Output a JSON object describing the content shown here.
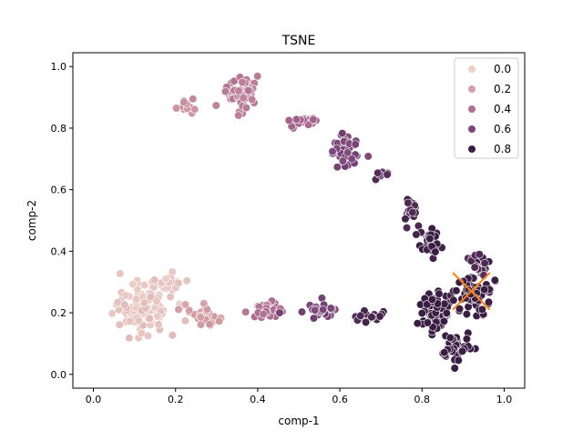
{
  "chart_data": {
    "type": "scatter",
    "title": "TSNE",
    "xlabel": "comp-1",
    "ylabel": "comp-2",
    "xlim": [
      -0.05,
      1.05
    ],
    "ylim": [
      -0.045,
      1.045
    ],
    "xticks": [
      0.0,
      0.2,
      0.4,
      0.6,
      0.8,
      1.0
    ],
    "yticks": [
      0.0,
      0.2,
      0.4,
      0.6,
      0.8,
      1.0
    ],
    "xtick_labels": [
      "0.0",
      "0.2",
      "0.4",
      "0.6",
      "0.8",
      "1.0"
    ],
    "ytick_labels": [
      "0.0",
      "0.2",
      "0.4",
      "0.6",
      "0.8",
      "1.0"
    ],
    "grid": false,
    "legend_position": "top-right",
    "legend": [
      {
        "label": "0.0",
        "value": 0.0
      },
      {
        "label": "0.2",
        "value": 0.2
      },
      {
        "label": "0.4",
        "value": 0.4
      },
      {
        "label": "0.6",
        "value": 0.6
      },
      {
        "label": "0.8",
        "value": 0.8
      }
    ],
    "hue_colors": {
      "0.0": "#ecd0c8",
      "0.2": "#d49fa4",
      "0.4": "#b06f92",
      "0.6": "#7b4679",
      "0.8": "#3a1d42"
    },
    "marker_edge_color": "#ffffff",
    "clusters": [
      {
        "hue": 0.05,
        "cx": 0.12,
        "cy": 0.22,
        "sx": 0.06,
        "sy": 0.07,
        "n": 120
      },
      {
        "hue": 0.05,
        "cx": 0.18,
        "cy": 0.3,
        "sx": 0.03,
        "sy": 0.03,
        "n": 20
      },
      {
        "hue": 0.2,
        "cx": 0.27,
        "cy": 0.19,
        "sx": 0.03,
        "sy": 0.03,
        "n": 25
      },
      {
        "hue": 0.25,
        "cx": 0.23,
        "cy": 0.87,
        "sx": 0.02,
        "sy": 0.015,
        "n": 15
      },
      {
        "hue": 0.35,
        "cx": 0.36,
        "cy": 0.92,
        "sx": 0.03,
        "sy": 0.05,
        "n": 60
      },
      {
        "hue": 0.45,
        "cx": 0.5,
        "cy": 0.82,
        "sx": 0.03,
        "sy": 0.02,
        "n": 25
      },
      {
        "hue": 0.6,
        "cx": 0.61,
        "cy": 0.72,
        "sx": 0.03,
        "sy": 0.05,
        "n": 45
      },
      {
        "hue": 0.7,
        "cx": 0.7,
        "cy": 0.65,
        "sx": 0.02,
        "sy": 0.01,
        "n": 8
      },
      {
        "hue": 0.75,
        "cx": 0.77,
        "cy": 0.53,
        "sx": 0.02,
        "sy": 0.03,
        "n": 25
      },
      {
        "hue": 0.8,
        "cx": 0.82,
        "cy": 0.43,
        "sx": 0.02,
        "sy": 0.04,
        "n": 30
      },
      {
        "hue": 0.4,
        "cx": 0.42,
        "cy": 0.21,
        "sx": 0.04,
        "sy": 0.02,
        "n": 40
      },
      {
        "hue": 0.6,
        "cx": 0.55,
        "cy": 0.21,
        "sx": 0.04,
        "sy": 0.02,
        "n": 30
      },
      {
        "hue": 0.75,
        "cx": 0.66,
        "cy": 0.19,
        "sx": 0.03,
        "sy": 0.02,
        "n": 20
      },
      {
        "hue": 0.9,
        "cx": 0.83,
        "cy": 0.2,
        "sx": 0.04,
        "sy": 0.06,
        "n": 60
      },
      {
        "hue": 0.85,
        "cx": 0.88,
        "cy": 0.09,
        "sx": 0.03,
        "sy": 0.04,
        "n": 40
      },
      {
        "hue": 0.75,
        "cx": 0.94,
        "cy": 0.35,
        "sx": 0.03,
        "sy": 0.05,
        "n": 35
      },
      {
        "hue": 0.9,
        "cx": 0.92,
        "cy": 0.25,
        "sx": 0.04,
        "sy": 0.05,
        "n": 50
      }
    ],
    "annotations": [
      {
        "type": "x-marker",
        "x": 0.92,
        "y": 0.27,
        "width": 0.09,
        "height": 0.12,
        "color": "#ff7f0e"
      }
    ]
  }
}
